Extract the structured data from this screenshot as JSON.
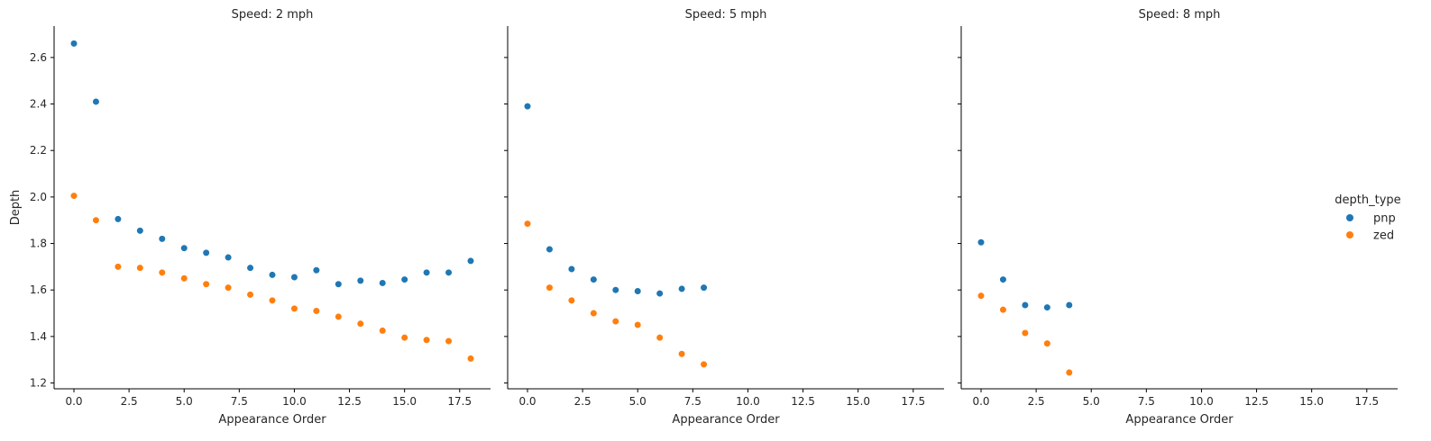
{
  "chart_data": {
    "type": "scatter",
    "xlabel": "Appearance Order",
    "ylabel": "Depth",
    "xlim": [
      -0.9,
      18.9
    ],
    "ylim": [
      1.175,
      2.735
    ],
    "x_ticks": [
      0.0,
      2.5,
      5.0,
      7.5,
      10.0,
      12.5,
      15.0,
      17.5
    ],
    "x_tick_labels": [
      "0.0",
      "2.5",
      "5.0",
      "7.5",
      "10.0",
      "12.5",
      "15.0",
      "17.5"
    ],
    "y_ticks": [
      1.2,
      1.4,
      1.6,
      1.8,
      2.0,
      2.2,
      2.4,
      2.6
    ],
    "y_tick_labels": [
      "1.2",
      "1.4",
      "1.6",
      "1.8",
      "2.0",
      "2.2",
      "2.4",
      "2.6"
    ],
    "shared_y": true,
    "grid": false,
    "legend": {
      "title": "depth_type",
      "placement": "right",
      "entries": [
        {
          "name": "pnp",
          "color": "#1f77b4"
        },
        {
          "name": "zed",
          "color": "#ff7f0e"
        }
      ]
    },
    "panels": [
      {
        "title": "Speed: 2 mph",
        "series": [
          {
            "name": "pnp",
            "color": "#1f77b4",
            "x": [
              0,
              1,
              2,
              3,
              4,
              5,
              6,
              7,
              8,
              9,
              10,
              11,
              12,
              13,
              14,
              15,
              16,
              17,
              18
            ],
            "y": [
              2.66,
              2.41,
              1.905,
              1.855,
              1.82,
              1.78,
              1.76,
              1.74,
              1.695,
              1.665,
              1.655,
              1.685,
              1.625,
              1.64,
              1.63,
              1.645,
              1.675,
              1.675,
              1.725
            ]
          },
          {
            "name": "zed",
            "color": "#ff7f0e",
            "x": [
              0,
              1,
              2,
              3,
              4,
              5,
              6,
              7,
              8,
              9,
              10,
              11,
              12,
              13,
              14,
              15,
              16,
              17,
              18
            ],
            "y": [
              2.005,
              1.9,
              1.7,
              1.695,
              1.675,
              1.65,
              1.625,
              1.61,
              1.58,
              1.555,
              1.52,
              1.51,
              1.485,
              1.455,
              1.425,
              1.395,
              1.385,
              1.38,
              1.305
            ]
          }
        ]
      },
      {
        "title": "Speed: 5 mph",
        "series": [
          {
            "name": "pnp",
            "color": "#1f77b4",
            "x": [
              0,
              1,
              2,
              3,
              4,
              5,
              6,
              7,
              8
            ],
            "y": [
              2.39,
              1.775,
              1.69,
              1.645,
              1.6,
              1.595,
              1.585,
              1.605,
              1.61
            ]
          },
          {
            "name": "zed",
            "color": "#ff7f0e",
            "x": [
              0,
              1,
              2,
              3,
              4,
              5,
              6,
              7,
              8
            ],
            "y": [
              1.885,
              1.61,
              1.555,
              1.5,
              1.465,
              1.45,
              1.395,
              1.325,
              1.28
            ]
          }
        ]
      },
      {
        "title": "Speed: 8 mph",
        "series": [
          {
            "name": "pnp",
            "color": "#1f77b4",
            "x": [
              0,
              1,
              2,
              3,
              4
            ],
            "y": [
              1.805,
              1.645,
              1.535,
              1.525,
              1.535
            ]
          },
          {
            "name": "zed",
            "color": "#ff7f0e",
            "x": [
              0,
              1,
              2,
              3,
              4
            ],
            "y": [
              1.575,
              1.515,
              1.415,
              1.37,
              1.245
            ]
          }
        ]
      }
    ]
  }
}
